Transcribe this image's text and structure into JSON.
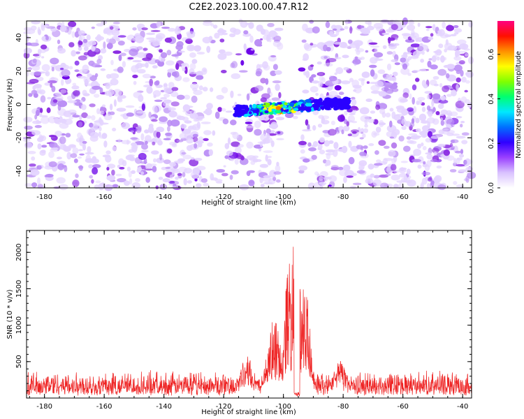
{
  "figure": {
    "title": "C2E2.2023.100.00.47.R12"
  },
  "colors": {
    "spectrogram_palette": [
      "#ffffff",
      "#e4d4ff",
      "#b98cf5",
      "#8a2be2",
      "#6a00e8",
      "#2a00ff",
      "#0060ff",
      "#00e0ff",
      "#00ff80",
      "#7fff00",
      "#ffff00",
      "#ff8000",
      "#ff0000",
      "#ff0090"
    ],
    "snr_line": "#ee2222",
    "axis": "#000000"
  },
  "chart_data": [
    {
      "type": "heatmap",
      "title": "C2E2.2023.100.00.47.R12",
      "xlabel": "Height of straight line (km)",
      "ylabel": "Frequency (Hz)",
      "xlim": [
        -186,
        -37
      ],
      "ylim": [
        -50,
        50
      ],
      "xticks": [
        -180,
        -160,
        -140,
        -120,
        -100,
        -80,
        -60,
        -40
      ],
      "yticks": [
        -40,
        -20,
        0,
        20,
        40
      ],
      "colorbar": {
        "label": "Normalized spectral amplitude",
        "range": [
          0.0,
          0.75
        ],
        "ticks": [
          0.0,
          0.2,
          0.4,
          0.6
        ]
      },
      "features": {
        "noise_gap_x": [
          -101,
          -94
        ],
        "noise_clear_band_x": [
          -127,
          -112
        ],
        "signal_band": {
          "x": [
            -116,
            -78
          ],
          "freq_center": -2,
          "freq_width": 6,
          "peak_amplitude": 0.7
        },
        "background_amplitude": 0.1
      }
    },
    {
      "type": "line",
      "xlabel": "Height of straight line (km)",
      "ylabel": "SNR (10 * v/v)",
      "xlim": [
        -186,
        -37
      ],
      "ylim": [
        0,
        2300
      ],
      "xticks": [
        -180,
        -160,
        -140,
        -120,
        -100,
        -80,
        -60,
        -40
      ],
      "yticks": [
        500,
        1000,
        1500,
        2000
      ],
      "series": [
        {
          "baseline": 180,
          "noise_range": [
            50,
            350
          ],
          "peaks": [
            {
              "x": -112,
              "y": 600
            },
            {
              "x": -103,
              "y": 1100
            },
            {
              "x": -98,
              "y": 1900
            },
            {
              "x": -96,
              "y": 2280
            },
            {
              "x": -93,
              "y": 1700
            },
            {
              "x": -81,
              "y": 520
            }
          ],
          "dropout_x": [
            -96.5,
            -94.5
          ]
        }
      ]
    }
  ]
}
